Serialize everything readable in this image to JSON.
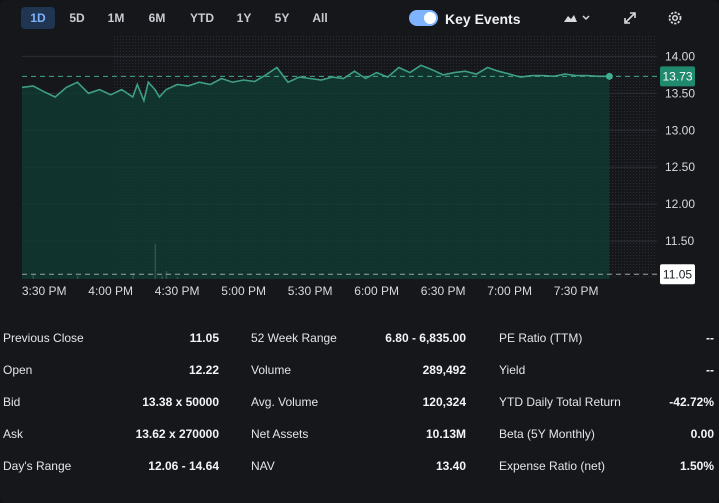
{
  "toolbar": {
    "ranges": [
      "1D",
      "5D",
      "1M",
      "6M",
      "YTD",
      "1Y",
      "5Y",
      "All"
    ],
    "active_range": "1D",
    "key_events_label": "Key Events",
    "key_events_on": true,
    "chart_type_icon": "mountain-chart-icon",
    "expand_icon": "expand-icon",
    "settings_icon": "gear-icon"
  },
  "colors": {
    "line": "#3f9e86",
    "fill": "#0f3d34",
    "current_tag": "#1f8a6e",
    "accent": "#7fb3ff"
  },
  "chart_data": {
    "type": "area",
    "x_tick_labels": [
      "3:30 PM",
      "4:00 PM",
      "4:30 PM",
      "5:00 PM",
      "5:30 PM",
      "6:00 PM",
      "6:30 PM",
      "7:00 PM",
      "7:30 PM"
    ],
    "y_tick_labels": [
      "14.00",
      "13.50",
      "13.00",
      "12.50",
      "12.00",
      "11.50"
    ],
    "ylim": [
      11.0,
      14.1
    ],
    "current_price_label": "13.73",
    "current_price": 13.73,
    "previous_close_label": "11.05",
    "previous_close": 11.05,
    "x_minutes": [
      0,
      5,
      10,
      15,
      20,
      25,
      30,
      35,
      40,
      45,
      50,
      52,
      55,
      57,
      60,
      62,
      65,
      70,
      75,
      80,
      85,
      90,
      95,
      100,
      105,
      110,
      115,
      120,
      125,
      130,
      135,
      140,
      145,
      150,
      155,
      160,
      165,
      170,
      175,
      180,
      185,
      190,
      195,
      200,
      205,
      210,
      215,
      220,
      225,
      230,
      235,
      240,
      245,
      250,
      255,
      260,
      265
    ],
    "prices": [
      13.58,
      13.6,
      13.52,
      13.45,
      13.58,
      13.65,
      13.5,
      13.55,
      13.48,
      13.55,
      13.45,
      13.62,
      13.4,
      13.65,
      13.55,
      13.45,
      13.55,
      13.62,
      13.6,
      13.65,
      13.62,
      13.7,
      13.65,
      13.68,
      13.66,
      13.75,
      13.85,
      13.65,
      13.72,
      13.7,
      13.68,
      13.72,
      13.7,
      13.8,
      13.7,
      13.78,
      13.72,
      13.85,
      13.78,
      13.88,
      13.82,
      13.75,
      13.78,
      13.8,
      13.76,
      13.85,
      13.8,
      13.76,
      13.72,
      13.74,
      13.74,
      13.73,
      13.76,
      13.74,
      13.74,
      13.73,
      13.73
    ],
    "volume_minutes": [
      5,
      25,
      50,
      60,
      63,
      65,
      70
    ],
    "volume_values": [
      4,
      3,
      6,
      35,
      3,
      8,
      2
    ]
  },
  "stats": [
    [
      {
        "label": "Previous Close",
        "value": "11.05"
      },
      {
        "label": "Open",
        "value": "12.22"
      },
      {
        "label": "Bid",
        "value": "13.38 x 50000"
      },
      {
        "label": "Ask",
        "value": "13.62 x 270000"
      },
      {
        "label": "Day's Range",
        "value": "12.06 - 14.64"
      }
    ],
    [
      {
        "label": "52 Week Range",
        "value": "6.80 - 6,835.00"
      },
      {
        "label": "Volume",
        "value": "289,492"
      },
      {
        "label": "Avg. Volume",
        "value": "120,324"
      },
      {
        "label": "Net Assets",
        "value": "10.13M"
      },
      {
        "label": "NAV",
        "value": "13.40"
      }
    ],
    [
      {
        "label": "PE Ratio (TTM)",
        "value": "--"
      },
      {
        "label": "Yield",
        "value": "--"
      },
      {
        "label": "YTD Daily Total Return",
        "value": "-42.72%"
      },
      {
        "label": "Beta (5Y Monthly)",
        "value": "0.00"
      },
      {
        "label": "Expense Ratio (net)",
        "value": "1.50%"
      }
    ]
  ]
}
